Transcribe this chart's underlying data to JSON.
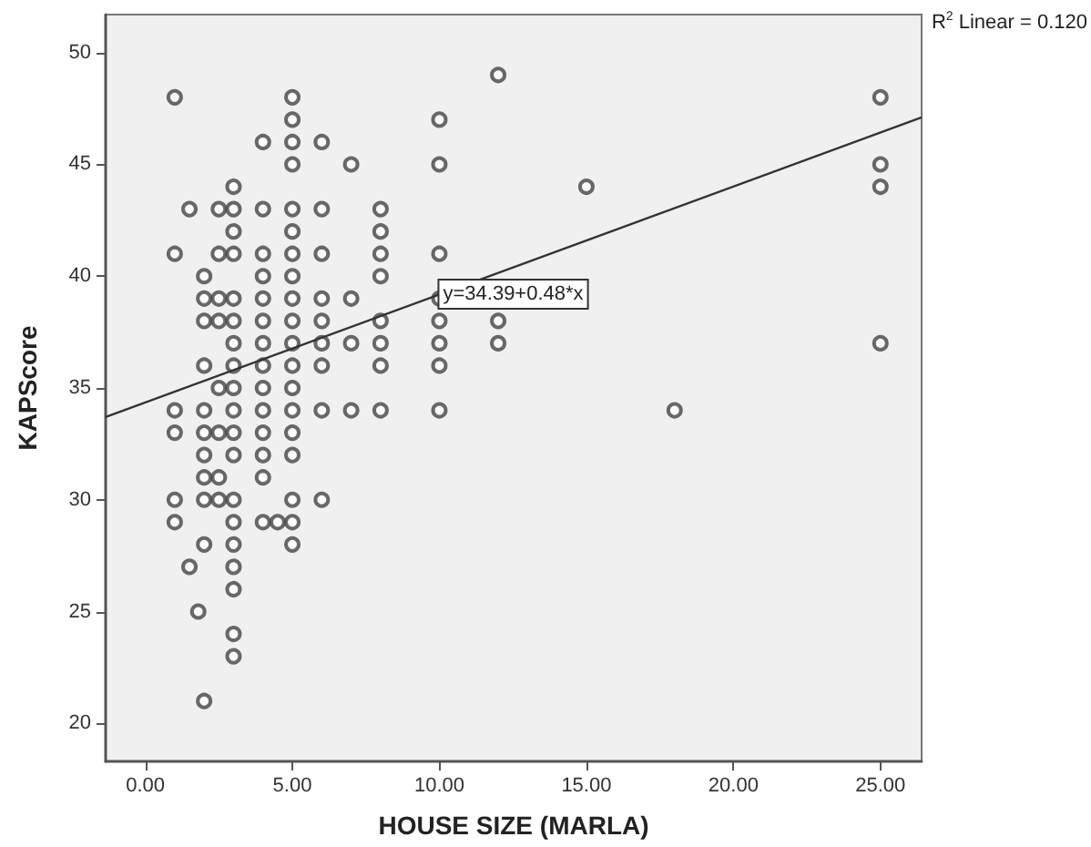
{
  "chart_data": {
    "type": "scatter",
    "xlabel": "HOUSE SIZE (MARLA)",
    "ylabel": "KAPScore",
    "annotations": [
      {
        "text": "y=34.39+0.48*x",
        "x": 10,
        "y": 39.2
      },
      "R$^{2}$ Linear = 0.120"
    ],
    "xlim": [
      -1.35,
      26.4
    ],
    "xticks": [
      {
        "value": 0,
        "label": "0.00"
      },
      {
        "value": 5,
        "label": "5.00"
      },
      {
        "value": 10,
        "label": "10.00"
      },
      {
        "value": 15,
        "label": "15.00"
      },
      {
        "value": 20,
        "label": "20.00"
      },
      {
        "value": 25,
        "label": "25.00"
      }
    ],
    "ylim": [
      18.3,
      51.7
    ],
    "yticks": [
      20,
      25,
      30,
      35,
      40,
      45,
      50
    ],
    "grid": false,
    "series": [
      {
        "marker": "circle",
        "color": "#444444",
        "x": [
          1,
          5,
          5,
          4,
          5,
          6,
          5,
          7,
          3,
          1.5,
          2.5,
          3,
          4,
          5,
          6,
          8,
          3,
          5,
          8,
          1,
          2.5,
          3,
          4,
          5,
          6,
          8,
          2,
          4,
          5,
          8,
          2,
          2.5,
          3,
          4,
          5,
          6,
          7,
          2,
          2.5,
          3,
          4,
          5,
          6,
          8,
          3,
          4,
          5,
          6,
          7,
          8,
          2,
          3,
          4,
          5,
          6,
          8,
          2.5,
          3,
          4,
          5,
          1,
          2,
          3,
          4,
          5,
          6,
          7,
          8,
          1,
          2,
          2.5,
          3,
          4,
          5,
          2,
          3,
          4,
          5,
          2,
          2.5,
          4,
          1,
          2,
          2.5,
          3,
          5,
          6,
          1,
          3,
          4,
          4.5,
          5,
          2,
          3,
          5,
          1.5,
          3,
          3,
          1.8,
          3,
          3,
          2,
          10,
          10,
          10,
          10,
          10,
          10,
          10,
          10,
          12,
          12,
          12,
          15,
          18,
          25,
          25,
          25,
          25
        ],
        "values": [
          48,
          48,
          47,
          46,
          46,
          46,
          45,
          45,
          44,
          43,
          43,
          43,
          43,
          43,
          43,
          43,
          42,
          42,
          42,
          41,
          41,
          41,
          41,
          41,
          41,
          41,
          40,
          40,
          40,
          40,
          39,
          39,
          39,
          39,
          39,
          39,
          39,
          38,
          38,
          38,
          38,
          38,
          38,
          38,
          37,
          37,
          37,
          37,
          37,
          37,
          36,
          36,
          36,
          36,
          36,
          36,
          35,
          35,
          35,
          35,
          34,
          34,
          34,
          34,
          34,
          34,
          34,
          34,
          33,
          33,
          33,
          33,
          33,
          33,
          32,
          32,
          32,
          32,
          31,
          31,
          31,
          30,
          30,
          30,
          30,
          30,
          30,
          29,
          29,
          29,
          29,
          29,
          28,
          28,
          28,
          27,
          27,
          26,
          25,
          24,
          23,
          21,
          47,
          45,
          41,
          39,
          38,
          37,
          36,
          34,
          49,
          38,
          37,
          44,
          34,
          48,
          45,
          44,
          37
        ]
      },
      {
        "type": "line",
        "color": "#333333",
        "x": [
          -1.35,
          26.4
        ],
        "values": [
          33.7,
          47.1
        ]
      }
    ]
  }
}
